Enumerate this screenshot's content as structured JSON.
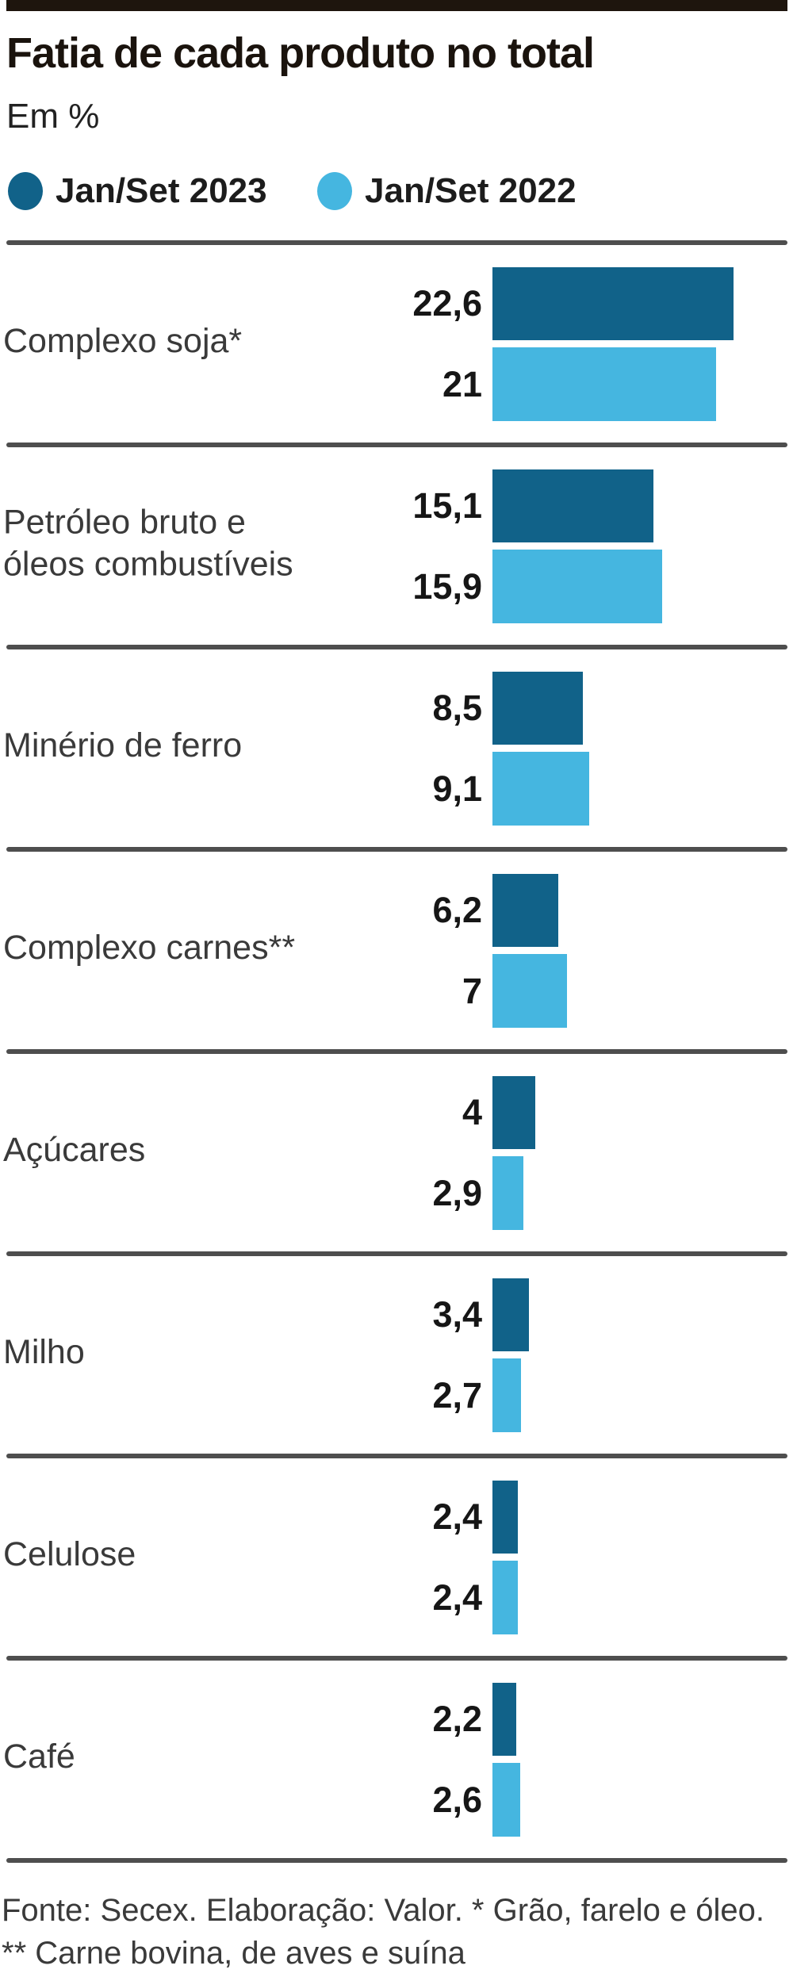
{
  "title": "Fatia de cada produto no total",
  "subtitle": "Em %",
  "legend": {
    "items": [
      {
        "label": "Jan/Set 2023",
        "color": "#116289"
      },
      {
        "label": "Jan/Set 2022",
        "color": "#45b6e0"
      }
    ]
  },
  "chart_data": {
    "type": "bar",
    "orientation": "horizontal",
    "title": "Fatia de cada produto no total",
    "unit": "%",
    "categories": [
      "Complexo soja*",
      "Petróleo bruto e óleos combustíveis",
      "Minério de ferro",
      "Complexo carnes**",
      "Açúcares",
      "Milho",
      "Celulose",
      "Café"
    ],
    "series": [
      {
        "name": "Jan/Set 2023",
        "color": "#116289",
        "values": [
          22.6,
          15.1,
          8.5,
          6.2,
          4,
          3.4,
          2.4,
          2.2
        ]
      },
      {
        "name": "Jan/Set 2022",
        "color": "#45b6e0",
        "values": [
          21,
          15.9,
          9.1,
          7,
          2.9,
          2.7,
          2.4,
          2.6
        ]
      }
    ],
    "value_labels": [
      [
        "22,6",
        "21"
      ],
      [
        "15,1",
        "15,9"
      ],
      [
        "8,5",
        "9,1"
      ],
      [
        "6,2",
        "7"
      ],
      [
        "4",
        "2,9"
      ],
      [
        "3,4",
        "2,7"
      ],
      [
        "2,4",
        "2,4"
      ],
      [
        "2,2",
        "2,6"
      ]
    ],
    "xlim": [
      0,
      23
    ],
    "legend_position": "top",
    "grid": false
  },
  "footer": {
    "line1": "Fonte: Secex. Elaboração: Valor. * Grão, farelo e óleo.",
    "line2": "** Carne bovina, de aves e suína"
  }
}
